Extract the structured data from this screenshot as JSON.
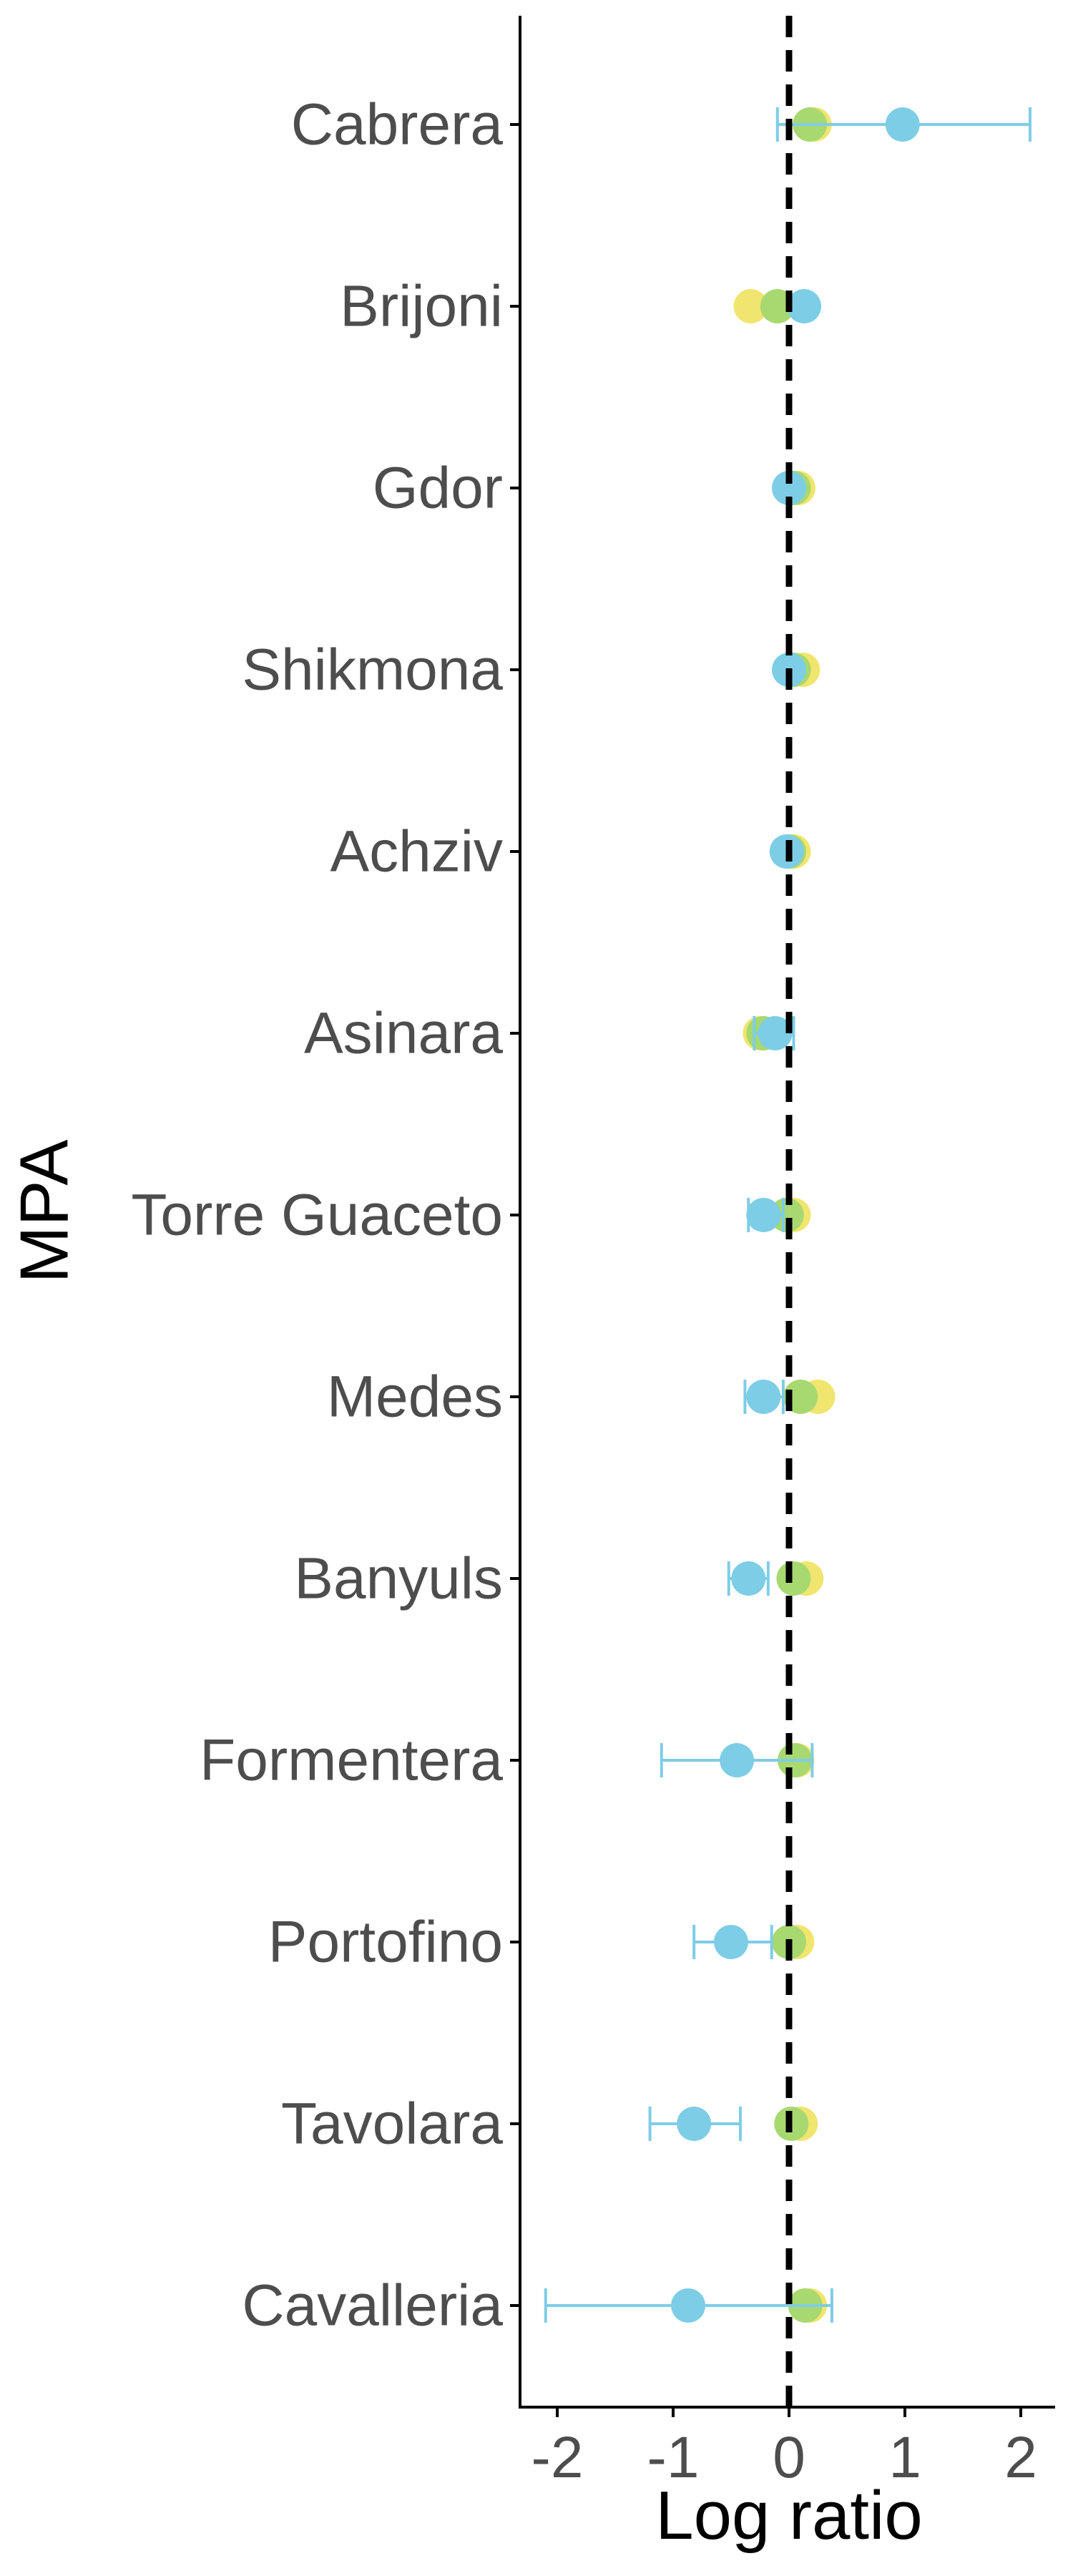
{
  "chart_data": {
    "type": "scatter",
    "orientation": "horizontal",
    "xlabel": "Log ratio",
    "ylabel": "MPA",
    "xlim": [
      -2.3,
      2.3
    ],
    "xticks": [
      -2,
      -1,
      0,
      1,
      2
    ],
    "xtick_labels": [
      "-2",
      "-1",
      "0",
      "1",
      "2"
    ],
    "reference_line": {
      "x": 0,
      "style": "dashed",
      "color": "#000000"
    },
    "grid": false,
    "legend": "none",
    "categories": [
      "Cabrera",
      "Brijoni",
      "Gdor",
      "Shikmona",
      "Achziv",
      "Asinara",
      "Torre Guaceto",
      "Medes",
      "Banyuls",
      "Formentera",
      "Portofino",
      "Tavolara",
      "Cavalleria"
    ],
    "series": [
      {
        "color": "#f0e56e",
        "values": [
          0.22,
          -0.33,
          0.08,
          0.12,
          0.04,
          -0.25,
          0.04,
          0.25,
          0.15,
          0.07,
          0.07,
          0.1,
          0.18
        ],
        "ci_low": [
          null,
          null,
          null,
          null,
          null,
          null,
          null,
          null,
          null,
          null,
          null,
          null,
          null
        ],
        "ci_high": [
          null,
          null,
          null,
          null,
          null,
          null,
          null,
          null,
          null,
          null,
          null,
          null,
          null
        ]
      },
      {
        "color": "#a8d870",
        "values": [
          0.18,
          -0.1,
          0.04,
          0.04,
          0.0,
          -0.22,
          -0.02,
          0.1,
          0.04,
          0.05,
          0.0,
          0.02,
          0.14
        ],
        "ci_low": [
          null,
          null,
          null,
          null,
          null,
          null,
          null,
          null,
          null,
          null,
          null,
          null,
          null
        ],
        "ci_high": [
          null,
          null,
          null,
          null,
          null,
          null,
          null,
          null,
          null,
          null,
          null,
          null,
          null
        ]
      },
      {
        "color": "#7ecde6",
        "values": [
          0.98,
          0.13,
          0.0,
          0.0,
          -0.02,
          -0.12,
          -0.22,
          -0.22,
          -0.35,
          -0.45,
          -0.5,
          -0.82,
          -0.87
        ],
        "ci_low": [
          -0.1,
          null,
          null,
          null,
          null,
          -0.3,
          -0.35,
          -0.38,
          -0.52,
          -1.1,
          -0.82,
          -1.2,
          -2.1
        ],
        "ci_high": [
          2.08,
          null,
          null,
          null,
          null,
          0.04,
          -0.05,
          -0.05,
          -0.18,
          0.2,
          -0.15,
          -0.42,
          0.37
        ]
      }
    ]
  }
}
